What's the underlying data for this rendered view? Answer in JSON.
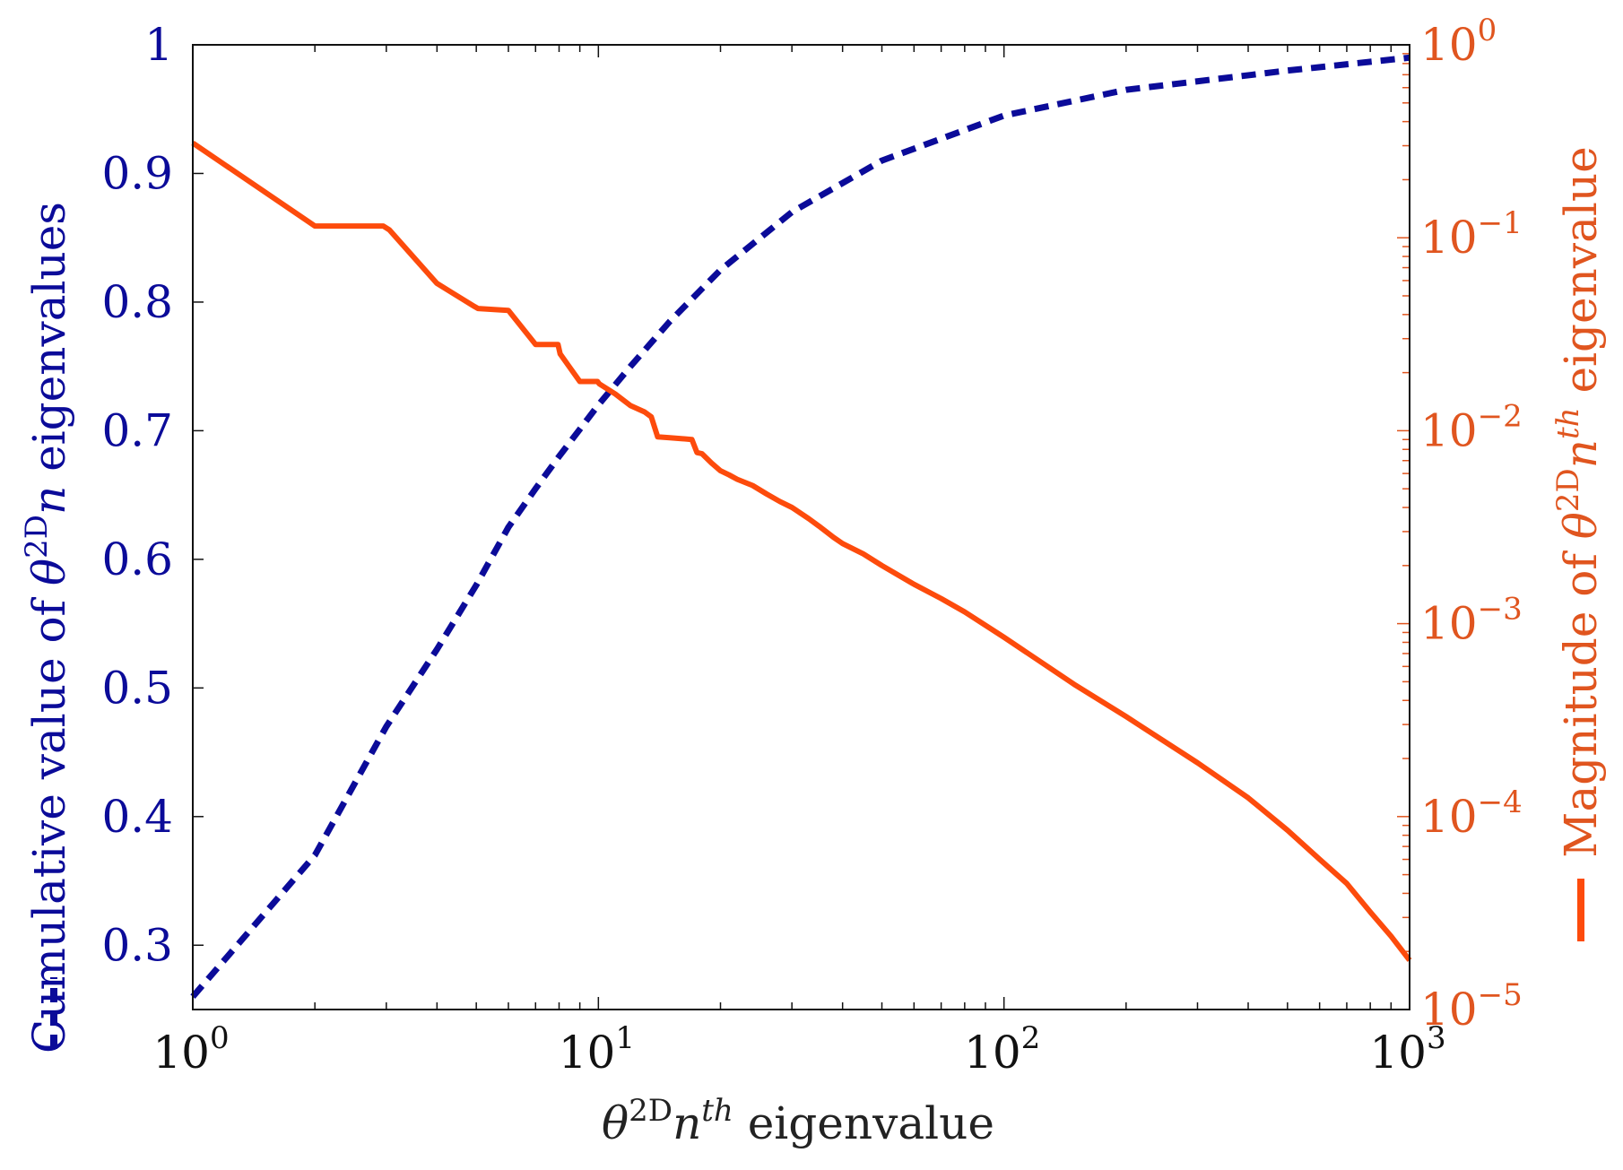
{
  "chart_data": {
    "type": "line",
    "x_scale": "log",
    "xlim": [
      1,
      1000
    ],
    "x_ticks": [
      {
        "base": "10",
        "exp": "0"
      },
      {
        "base": "10",
        "exp": "1"
      },
      {
        "base": "10",
        "exp": "2"
      },
      {
        "base": "10",
        "exp": "3"
      }
    ],
    "xlabel": {
      "sym": "θ",
      "sup": "2D",
      "n": "n",
      "nsup": "th",
      "rest": " eigenvalue"
    },
    "y_left": {
      "scale": "linear",
      "lim": [
        0.25,
        1.0
      ],
      "ticks": [
        "0.3",
        "0.4",
        "0.5",
        "0.6",
        "0.7",
        "0.8",
        "0.9",
        "1"
      ],
      "label": {
        "pre": "Cumulative value of ",
        "sym": "θ",
        "sup": "2D",
        "n": "n",
        "rest": " eigenvalues"
      },
      "color": "#0b0b99"
    },
    "y_right": {
      "scale": "log",
      "lim": [
        1e-05,
        1
      ],
      "ticks": [
        {
          "base": "10",
          "exp": "0"
        },
        {
          "base": "10",
          "exp": "−1"
        },
        {
          "base": "10",
          "exp": "−2"
        },
        {
          "base": "10",
          "exp": "−3"
        },
        {
          "base": "10",
          "exp": "−4"
        },
        {
          "base": "10",
          "exp": "−5"
        }
      ],
      "label": {
        "pre": "Magnitude of ",
        "sym": "θ",
        "sup": "2D",
        "n": "n",
        "nsup": "th",
        "rest": " eigenvalue"
      },
      "color": "#e0551f"
    },
    "series": [
      {
        "name": "Cumulative value of eigenvalues",
        "axis": "left",
        "style": "dashed",
        "color": "#0b0b99",
        "x": [
          1,
          2,
          3,
          4,
          5,
          6,
          7,
          8,
          10,
          12,
          15,
          20,
          30,
          50,
          100,
          200,
          500,
          1000
        ],
        "y": [
          0.26,
          0.37,
          0.47,
          0.53,
          0.58,
          0.625,
          0.655,
          0.68,
          0.72,
          0.75,
          0.785,
          0.825,
          0.87,
          0.91,
          0.945,
          0.965,
          0.98,
          0.99
        ]
      },
      {
        "name": "Magnitude of nth eigenvalue",
        "axis": "right",
        "style": "solid",
        "color": "#fd4b0c",
        "x": [
          1,
          2,
          2.95,
          3.05,
          4,
          4.95,
          5.05,
          6,
          7,
          7.95,
          8.05,
          9,
          9.95,
          10.05,
          11,
          12,
          13,
          13.5,
          14,
          15,
          16,
          17,
          17.5,
          18,
          19,
          20,
          21,
          22,
          24,
          26,
          28,
          30,
          33,
          35,
          38,
          40,
          45,
          50,
          60,
          70,
          80,
          100,
          150,
          200,
          300,
          400,
          500,
          600,
          700,
          800,
          900,
          1000
        ],
        "y": [
          0.31,
          0.115,
          0.115,
          0.11,
          0.058,
          0.044,
          0.043,
          0.042,
          0.028,
          0.028,
          0.025,
          0.018,
          0.018,
          0.0175,
          0.0155,
          0.0135,
          0.0125,
          0.0118,
          0.0093,
          0.0092,
          0.0091,
          0.009,
          0.0077,
          0.0076,
          0.0068,
          0.0062,
          0.0059,
          0.0056,
          0.0052,
          0.0047,
          0.0043,
          0.004,
          0.0035,
          0.0032,
          0.0028,
          0.0026,
          0.0023,
          0.002,
          0.0016,
          0.00135,
          0.00115,
          0.00085,
          0.00048,
          0.00033,
          0.00019,
          0.000125,
          8.5e-05,
          6e-05,
          4.5e-05,
          3.2e-05,
          2.4e-05,
          1.8e-05
        ]
      }
    ]
  }
}
